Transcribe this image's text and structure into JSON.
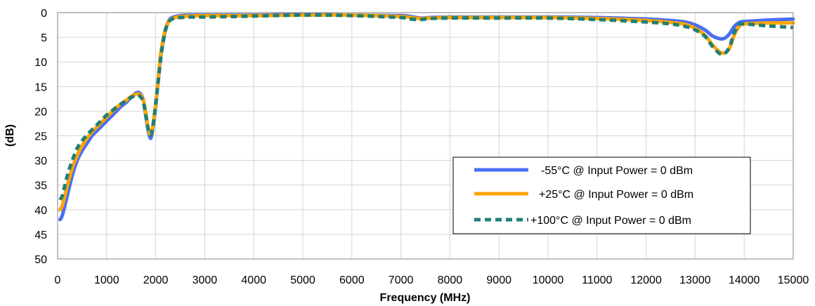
{
  "chart_data": {
    "type": "line",
    "title": "",
    "xlabel": "Frequency (MHz)",
    "ylabel": "(dB)",
    "xlim": [
      0,
      15000
    ],
    "ylim": [
      0,
      50
    ],
    "y_inverted": true,
    "x_ticks": [
      0,
      1000,
      2000,
      3000,
      4000,
      5000,
      6000,
      7000,
      8000,
      9000,
      10000,
      11000,
      12000,
      13000,
      14000,
      15000
    ],
    "y_ticks": [
      0,
      5,
      10,
      15,
      20,
      25,
      30,
      35,
      40,
      45,
      50
    ],
    "grid": true,
    "legend_position": "bottom-right",
    "series": [
      {
        "name": "-55°C @ Input Power = 0 dBm",
        "color": "#4a6ef5",
        "style": "solid",
        "x": [
          50,
          100,
          200,
          300,
          400,
          500,
          600,
          700,
          800,
          900,
          1000,
          1100,
          1200,
          1300,
          1400,
          1500,
          1600,
          1650,
          1700,
          1750,
          1800,
          1850,
          1900,
          1950,
          2000,
          2050,
          2100,
          2150,
          2200,
          2250,
          2300,
          2400,
          2500,
          2700,
          3000,
          4000,
          5000,
          6000,
          7000,
          7200,
          7400,
          7600,
          8000,
          9000,
          10000,
          11000,
          12000,
          12500,
          12800,
          13000,
          13200,
          13350,
          13500,
          13600,
          13700,
          13800,
          13900,
          14000,
          14500,
          15000
        ],
        "y": [
          42,
          41,
          37,
          33,
          30,
          28,
          26.5,
          25,
          24,
          23,
          22,
          21,
          20,
          19,
          18.2,
          17.2,
          16.3,
          16.2,
          16.6,
          17.8,
          21,
          24,
          25.5,
          23,
          19,
          14,
          9,
          6,
          3.5,
          2,
          1.2,
          0.8,
          0.6,
          0.5,
          0.5,
          0.5,
          0.4,
          0.5,
          0.6,
          0.8,
          1.1,
          1,
          0.9,
          0.9,
          0.9,
          1,
          1.3,
          1.6,
          1.9,
          2.5,
          3.5,
          4.7,
          5.3,
          5.2,
          4.3,
          2.8,
          2,
          1.8,
          1.5,
          1.3
        ]
      },
      {
        "name": "+25°C @ Input Power = 0 dBm",
        "color": "#ffa500",
        "style": "solid",
        "x": [
          50,
          100,
          200,
          300,
          400,
          500,
          600,
          700,
          800,
          900,
          1000,
          1100,
          1200,
          1300,
          1400,
          1500,
          1600,
          1650,
          1700,
          1750,
          1800,
          1850,
          1900,
          1950,
          2000,
          2050,
          2100,
          2150,
          2200,
          2250,
          2300,
          2400,
          2500,
          2700,
          3000,
          4000,
          5000,
          6000,
          7000,
          7200,
          7400,
          7600,
          8000,
          9000,
          10000,
          11000,
          12000,
          12500,
          12800,
          13000,
          13200,
          13350,
          13500,
          13600,
          13700,
          13800,
          13900,
          14000,
          14500,
          15000
        ],
        "y": [
          40,
          39,
          35,
          31.5,
          29,
          27,
          25.5,
          24.2,
          23.2,
          22.2,
          21.2,
          20.2,
          19.3,
          18.5,
          17.8,
          17,
          16.6,
          16.5,
          16.8,
          17.8,
          20.5,
          23.5,
          24.8,
          22.5,
          18.5,
          13.5,
          8.5,
          5.5,
          3.2,
          2,
          1.4,
          1,
          0.8,
          0.7,
          0.6,
          0.6,
          0.5,
          0.5,
          0.8,
          1,
          1.2,
          1.1,
          1,
          1,
          1,
          1.2,
          1.6,
          2,
          2.4,
          3.2,
          4.6,
          6.5,
          8,
          8.2,
          7.2,
          4.5,
          2.8,
          2.3,
          2.1,
          2.1
        ]
      },
      {
        "name": "+100°C @ Input Power = 0 dBm",
        "color": "#1f7f75",
        "style": "dashed",
        "x": [
          50,
          100,
          200,
          300,
          400,
          500,
          600,
          700,
          800,
          900,
          1000,
          1100,
          1200,
          1300,
          1400,
          1500,
          1600,
          1650,
          1700,
          1750,
          1800,
          1850,
          1900,
          1950,
          2000,
          2050,
          2100,
          2150,
          2200,
          2250,
          2300,
          2400,
          2500,
          2700,
          3000,
          4000,
          5000,
          6000,
          7000,
          7200,
          7400,
          7600,
          8000,
          9000,
          10000,
          11000,
          12000,
          12500,
          12800,
          13000,
          13200,
          13350,
          13500,
          13600,
          13700,
          13800,
          13900,
          14000,
          14500,
          15000
        ],
        "y": [
          38,
          37,
          33,
          30,
          27.5,
          26,
          24.8,
          23.8,
          22.8,
          21.8,
          20.8,
          20,
          19.2,
          18.5,
          17.8,
          17.2,
          16.8,
          16.8,
          17.2,
          18.2,
          21,
          23.8,
          24.8,
          22.5,
          18.5,
          14,
          9.5,
          6,
          3.5,
          2.3,
          1.5,
          1.1,
          1,
          0.9,
          0.9,
          0.7,
          0.5,
          0.6,
          1,
          1.3,
          1.4,
          1.2,
          1.1,
          1.1,
          1.1,
          1.4,
          1.9,
          2.3,
          2.8,
          3.5,
          4.8,
          6.8,
          8.3,
          8.3,
          7,
          4,
          2.4,
          2.3,
          2.7,
          3
        ]
      }
    ]
  }
}
